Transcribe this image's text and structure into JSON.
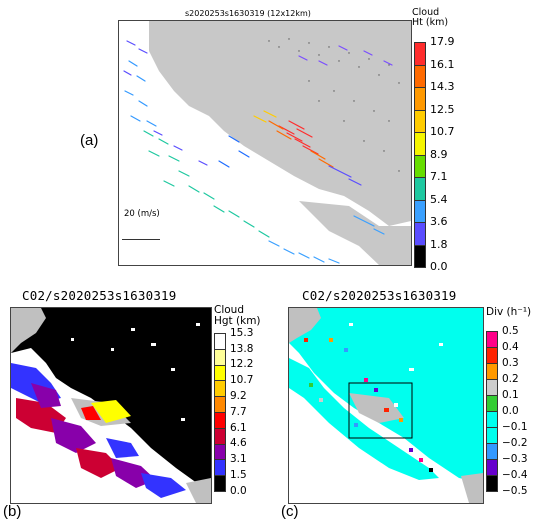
{
  "figure": {
    "panel_a": {
      "label": "(a)",
      "title": "s2020253s1630319 (12x12km)",
      "scale_text": "20 (m/s)",
      "colorbar": {
        "title_line1": "Cloud",
        "title_line2": "Ht (km)",
        "ticks": [
          "17.9",
          "16.1",
          "14.3",
          "12.5",
          "10.7",
          "8.9",
          "7.1",
          "5.4",
          "3.6",
          "1.8",
          "0.0"
        ],
        "colors": [
          "#ff2d2d",
          "#ff6a00",
          "#ff9900",
          "#ffcc00",
          "#f5f500",
          "#66dd00",
          "#1ec8a0",
          "#3aa0ff",
          "#5a4dff",
          "#000000"
        ]
      }
    },
    "panel_b": {
      "label": "(b)",
      "title": "C02/s2020253s1630319",
      "colorbar": {
        "title_line1": "Cloud",
        "title_line2": "Hgt (km)",
        "ticks": [
          "15.3",
          "13.8",
          "12.2",
          "10.7",
          "9.2",
          "7.7",
          "6.1",
          "4.6",
          "3.1",
          "1.5",
          "0.0"
        ],
        "colors": [
          "#ffffff",
          "#ffff99",
          "#ffff00",
          "#ffcc00",
          "#ff8800",
          "#ff0000",
          "#cc0033",
          "#8800aa",
          "#3333ff",
          "#000000"
        ]
      }
    },
    "panel_c": {
      "label": "(c)",
      "title": "C02/s2020253s1630319",
      "colorbar": {
        "title_line1": "Div  (h⁻¹)",
        "ticks": [
          "0.5",
          "0.4",
          "0.3",
          "0.2",
          "0.1",
          "0.0",
          "−0.1",
          "−0.2",
          "−0.3",
          "−0.4",
          "−0.5"
        ],
        "colors": [
          "#ff0088",
          "#ff2200",
          "#ff9900",
          "#cccccc",
          "#33cc33",
          "#00ffee",
          "#00ffee",
          "#3399ff",
          "#6600cc",
          "#000000"
        ]
      }
    }
  }
}
